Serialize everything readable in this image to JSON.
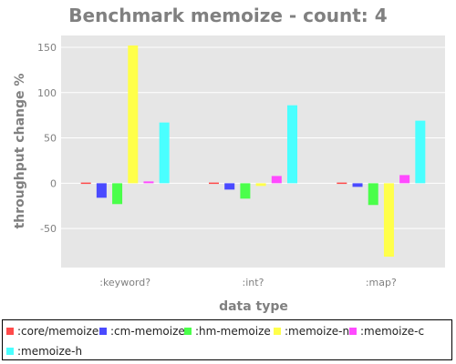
{
  "chart_data": {
    "type": "bar",
    "title": "Benchmark memoize - count: 4",
    "xlabel": "data type",
    "ylabel": "throughput change %",
    "categories": [
      ":keyword?",
      ":int?",
      ":map?"
    ],
    "ylim": [
      -93,
      163
    ],
    "yticks": [
      -50,
      0,
      50,
      100,
      150
    ],
    "grid": true,
    "legend_position": "bottom",
    "series": [
      {
        "name": ":core/memoize",
        "color": "#ff4a4a",
        "values": [
          0,
          0,
          0
        ]
      },
      {
        "name": ":cm-memoize",
        "color": "#4a4aff",
        "values": [
          -16,
          -7,
          -4
        ]
      },
      {
        "name": ":hm-memoize",
        "color": "#4aff4a",
        "values": [
          -23,
          -17,
          -24
        ]
      },
      {
        "name": ":memoize-n",
        "color": "#ffff4a",
        "values": [
          152,
          -3,
          -81
        ]
      },
      {
        "name": ":memoize-c",
        "color": "#ff4aff",
        "values": [
          2,
          8,
          9
        ]
      },
      {
        "name": ":memoize-h",
        "color": "#4affff",
        "values": [
          67,
          86,
          69
        ]
      }
    ]
  }
}
